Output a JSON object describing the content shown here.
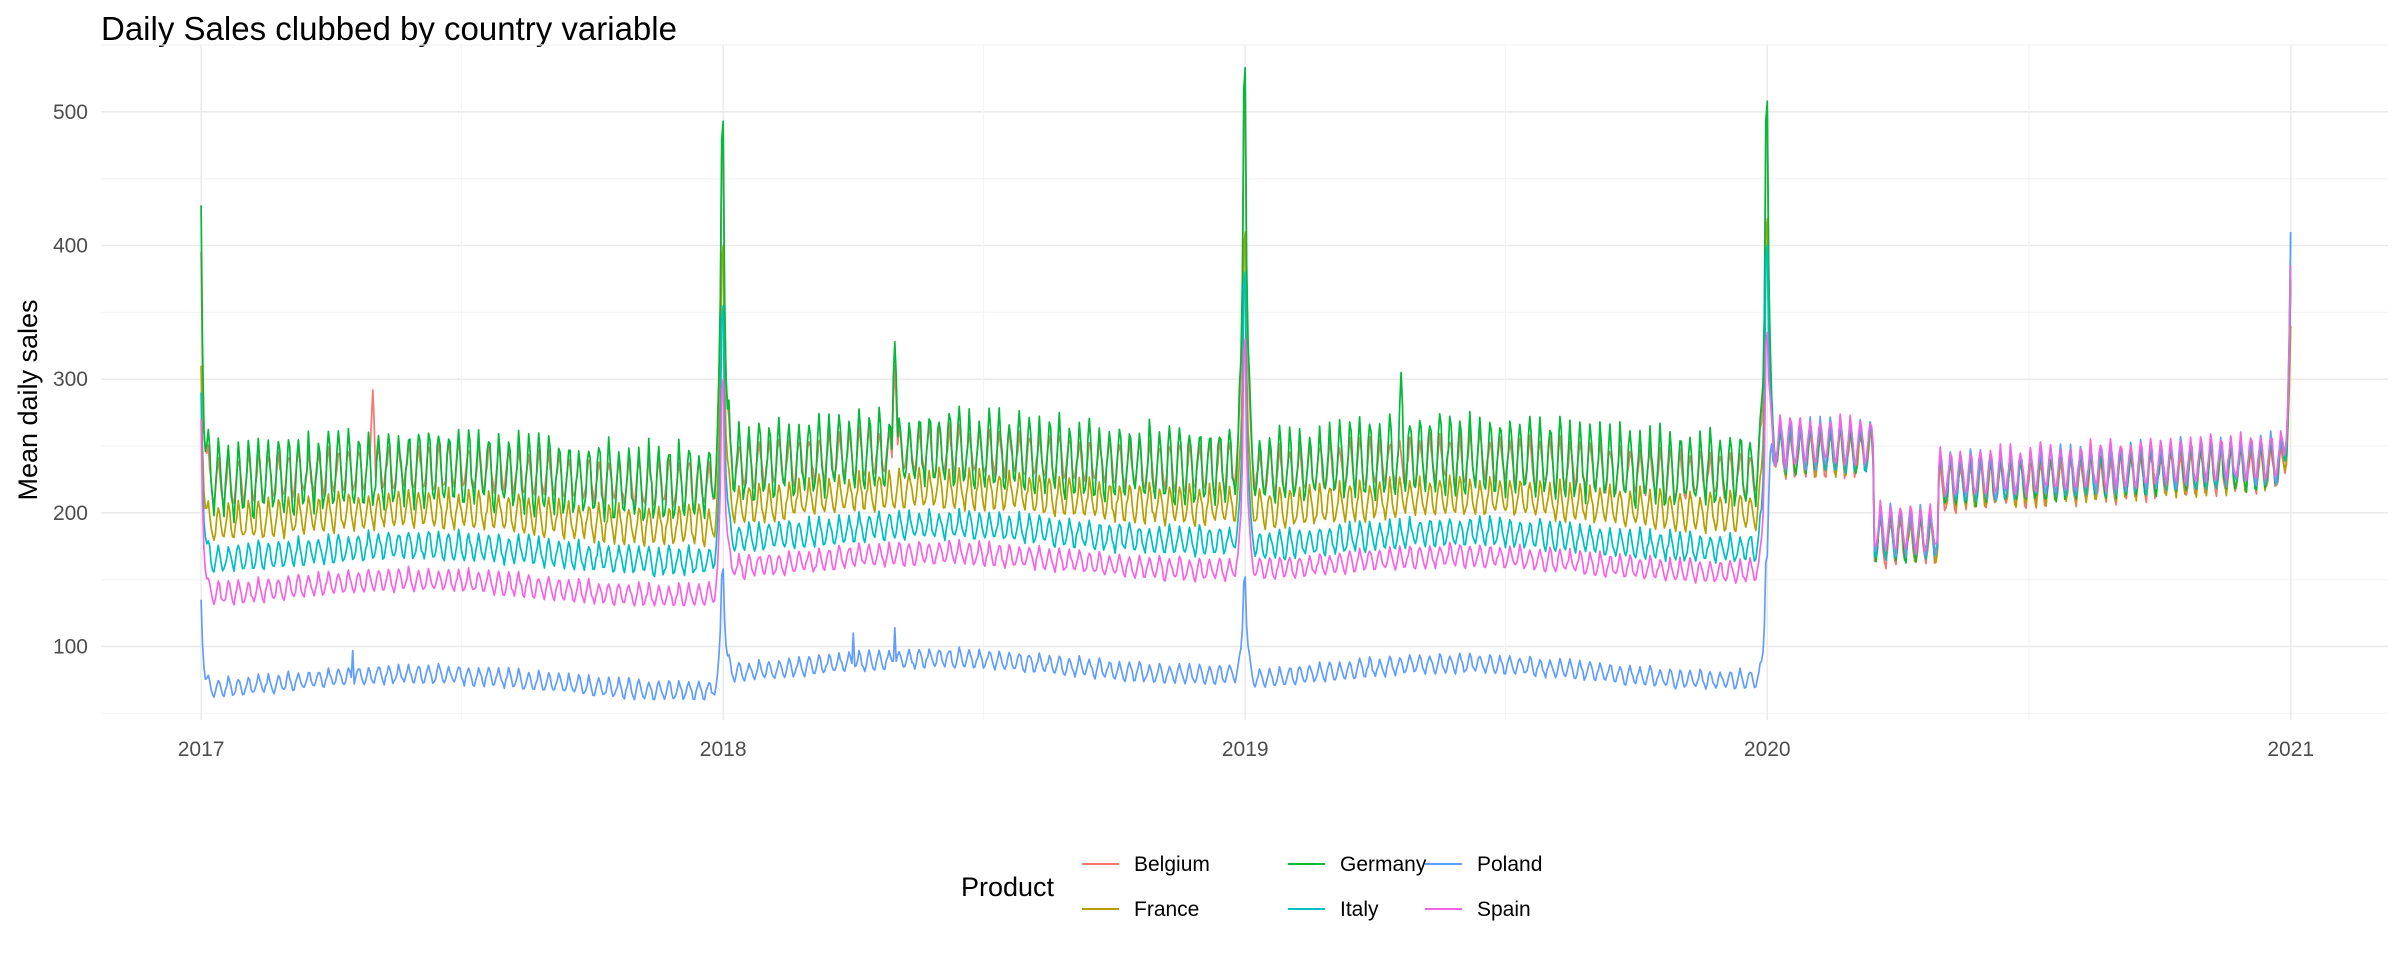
{
  "chart_data": {
    "type": "line",
    "title": "Daily Sales clubbed by country variable",
    "xlabel": "",
    "ylabel": "Mean daily sales",
    "x_ticks": [
      "2017",
      "2018",
      "2019",
      "2020",
      "2021"
    ],
    "y_ticks": [
      100,
      200,
      300,
      400,
      500
    ],
    "xlim": [
      "2016-10-23",
      "2021-03-10"
    ],
    "ylim": [
      45,
      550
    ],
    "grid": true,
    "legend": {
      "title": "Product",
      "position": "bottom",
      "layout": "3 columns x 2 rows"
    },
    "x_start": "2017-01-01",
    "x_end": "2021-01-01",
    "series": [
      {
        "name": "Belgium",
        "color": "#F8766D",
        "base_by_year": [
          220,
          232,
          226,
          222
        ],
        "weekly_amplitude": [
          25,
          25,
          25,
          25
        ],
        "new_year_peak": [
          395,
          480,
          515,
          500,
          370
        ],
        "notable_peaks": [
          {
            "date": "2017-05-01",
            "value": 292
          },
          {
            "date": "2018-05-01",
            "value": 310
          }
        ]
      },
      {
        "name": "France",
        "color": "#B79F00",
        "base_by_year": [
          190,
          205,
          200,
          195
        ],
        "weekly_amplitude": [
          20,
          20,
          20,
          20
        ],
        "new_year_peak": [
          310,
          400,
          410,
          420,
          340
        ],
        "notable_peaks": []
      },
      {
        "name": "Germany",
        "color": "#00BA38",
        "base_by_year": [
          215,
          228,
          225,
          220
        ],
        "weekly_amplitude": [
          40,
          40,
          40,
          40
        ],
        "new_year_peak": [
          430,
          493,
          533,
          508,
          375
        ],
        "notable_peaks": [
          {
            "date": "2018-05-01",
            "value": 328
          },
          {
            "date": "2019-04-20",
            "value": 305
          }
        ]
      },
      {
        "name": "Italy",
        "color": "#00BFC4",
        "base_by_year": [
          165,
          180,
          175,
          170
        ],
        "weekly_amplitude": [
          15,
          15,
          15,
          15
        ],
        "new_year_peak": [
          290,
          355,
          380,
          400,
          410
        ],
        "notable_peaks": []
      },
      {
        "name": "Poland",
        "color": "#619CFF",
        "base_by_year": [
          70,
          82,
          78,
          75
        ],
        "weekly_amplitude": [
          10,
          10,
          10,
          10
        ],
        "new_year_peak": [
          135,
          158,
          152,
          168,
          410
        ],
        "notable_peaks": [
          {
            "date": "2017-04-17",
            "value": 97
          },
          {
            "date": "2018-04-02",
            "value": 110
          },
          {
            "date": "2018-05-01",
            "value": 114
          }
        ]
      },
      {
        "name": "Spain",
        "color": "#F564E3",
        "base_by_year": [
          140,
          160,
          158,
          148
        ],
        "weekly_amplitude": [
          12,
          12,
          12,
          12
        ],
        "new_year_peak": [
          270,
          300,
          330,
          335,
          385
        ],
        "notable_peaks": []
      }
    ],
    "converged_2020": {
      "description": "All countries converge around 200-280 during 2020",
      "level_jan_mar": 240,
      "level_apr": 175,
      "level_may_dec": 215,
      "weekly_amplitude": 25
    }
  }
}
